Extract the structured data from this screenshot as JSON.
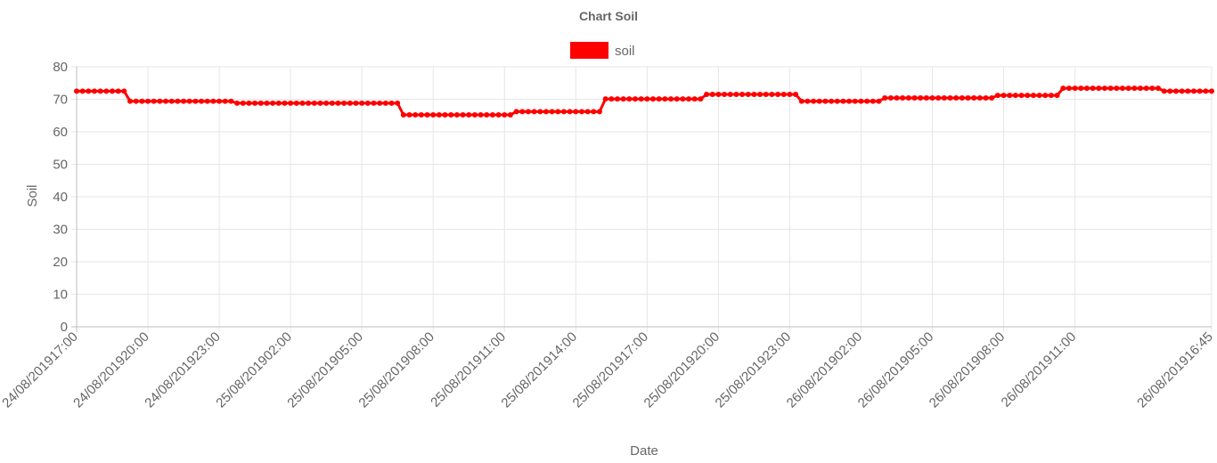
{
  "chart_data": {
    "type": "line",
    "title": "Chart Soil",
    "xlabel": "Date",
    "ylabel": "Soil",
    "ylim": [
      0,
      80
    ],
    "y_ticks": [
      0,
      10,
      20,
      30,
      40,
      50,
      60,
      70,
      80
    ],
    "grid": true,
    "legend_position": "top-center",
    "x_range": [
      "24/08/2019 17:00",
      "26/08/2019 16:45"
    ],
    "x_tick_labels": [
      "24/08/201917:00",
      "24/08/201920:00",
      "24/08/201923:00",
      "25/08/201902:00",
      "25/08/201905:00",
      "25/08/201908:00",
      "25/08/201911:00",
      "25/08/201914:00",
      "25/08/201917:00",
      "25/08/201920:00",
      "25/08/201923:00",
      "26/08/201902:00",
      "26/08/201905:00",
      "26/08/201908:00",
      "26/08/201911:00",
      "26/08/201916:45"
    ],
    "series": [
      {
        "name": "soil",
        "color": "#ff0000",
        "sampling_interval_minutes": 15,
        "segments": [
          {
            "from": "24/08/2019 17:00",
            "to": "24/08/2019 19:00",
            "value": 72.5
          },
          {
            "from": "24/08/2019 19:15",
            "to": "24/08/2019 23:30",
            "value": 69.4
          },
          {
            "from": "24/08/2019 23:45",
            "to": "25/08/2019 06:30",
            "value": 68.8
          },
          {
            "from": "25/08/2019 06:45",
            "to": "25/08/2019 11:15",
            "value": 65.2
          },
          {
            "from": "25/08/2019 11:30",
            "to": "25/08/2019 15:00",
            "value": 66.2
          },
          {
            "from": "25/08/2019 15:15",
            "to": "25/08/2019 19:15",
            "value": 70.1
          },
          {
            "from": "25/08/2019 19:30",
            "to": "25/08/2019 23:15",
            "value": 71.5
          },
          {
            "from": "25/08/2019 23:30",
            "to": "26/08/2019 02:45",
            "value": 69.4
          },
          {
            "from": "26/08/2019 03:00",
            "to": "26/08/2019 07:30",
            "value": 70.4
          },
          {
            "from": "26/08/2019 07:45",
            "to": "26/08/2019 10:15",
            "value": 71.2
          },
          {
            "from": "26/08/2019 10:30",
            "to": "26/08/2019 14:30",
            "value": 73.4
          },
          {
            "from": "26/08/2019 14:45",
            "to": "26/08/2019 16:45",
            "value": 72.5
          }
        ]
      }
    ]
  }
}
